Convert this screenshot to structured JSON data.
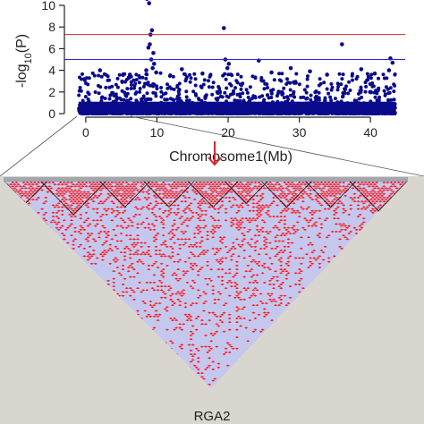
{
  "chart_data": [
    {
      "type": "scatter",
      "subtype": "manhattan",
      "xlabel": "Chromosome1(Mb)",
      "ylabel": "-log10(P)",
      "ylabel_parts": {
        "prefix": "-log",
        "subscript": "10",
        "suffix": "(P)"
      },
      "xlim": [
        -3,
        44
      ],
      "ylim": [
        0,
        11
      ],
      "xticks": [
        0,
        10,
        20,
        30,
        40
      ],
      "yticks": [
        0,
        2,
        4,
        6,
        8,
        10
      ],
      "grid": false,
      "point_color": "#0a0a8c",
      "thresholds": [
        {
          "value": 7.3,
          "color": "#d62728"
        },
        {
          "value": 5.0,
          "color": "#2b2bd1"
        }
      ],
      "notable_points": [
        {
          "x": 8.6,
          "y": 10.6
        },
        {
          "x": 8.9,
          "y": 10.2
        },
        {
          "x": 9.3,
          "y": 7.7
        },
        {
          "x": 9.1,
          "y": 7.3
        },
        {
          "x": 9.0,
          "y": 6.4
        },
        {
          "x": 8.8,
          "y": 6.1
        },
        {
          "x": 9.5,
          "y": 5.6
        },
        {
          "x": 9.2,
          "y": 5.0
        },
        {
          "x": 9.6,
          "y": 4.6
        },
        {
          "x": 9.4,
          "y": 4.2
        },
        {
          "x": 8.5,
          "y": 4.0
        },
        {
          "x": 9.9,
          "y": 3.8
        },
        {
          "x": 19.4,
          "y": 7.9
        },
        {
          "x": 19.6,
          "y": 5.0
        },
        {
          "x": 20.1,
          "y": 4.6
        },
        {
          "x": 19.9,
          "y": 4.2
        },
        {
          "x": 36.0,
          "y": 6.4
        },
        {
          "x": 42.8,
          "y": 5.1
        },
        {
          "x": 43.1,
          "y": 4.7
        },
        {
          "x": 42.6,
          "y": 4.0
        },
        {
          "x": 24.3,
          "y": 4.9
        },
        {
          "x": 2.0,
          "y": 4.0
        },
        {
          "x": 13.5,
          "y": 4.1
        },
        {
          "x": 28.8,
          "y": 4.2
        },
        {
          "x": 31.5,
          "y": 3.9
        },
        {
          "x": 38.7,
          "y": 4.1
        },
        {
          "x": 6.2,
          "y": 3.6
        },
        {
          "x": 16.4,
          "y": 3.7
        },
        {
          "x": 26.1,
          "y": 3.8
        },
        {
          "x": 33.9,
          "y": 3.6
        },
        {
          "x": 40.6,
          "y": 3.7
        }
      ],
      "background_band": {
        "x_range": [
          -1,
          43.5
        ],
        "y_max_typical": 3.0
      }
    },
    {
      "type": "heatmap",
      "subtype": "linkage-disequilibrium-triangle",
      "colors": {
        "high": "#ff1a1a",
        "low": "#c5c8ee",
        "background": "#d9d6cf"
      },
      "region_mb": [
        8.5,
        9.9
      ],
      "gene_label": "RGA2"
    }
  ],
  "labels": {
    "gene": "RGA2"
  },
  "colors": {
    "arrow": "#d62728",
    "axis": "#222222",
    "ld_background": "#d9d6cf",
    "ld_high": "#ff1a1a",
    "ld_low": "#c5c8ee"
  }
}
